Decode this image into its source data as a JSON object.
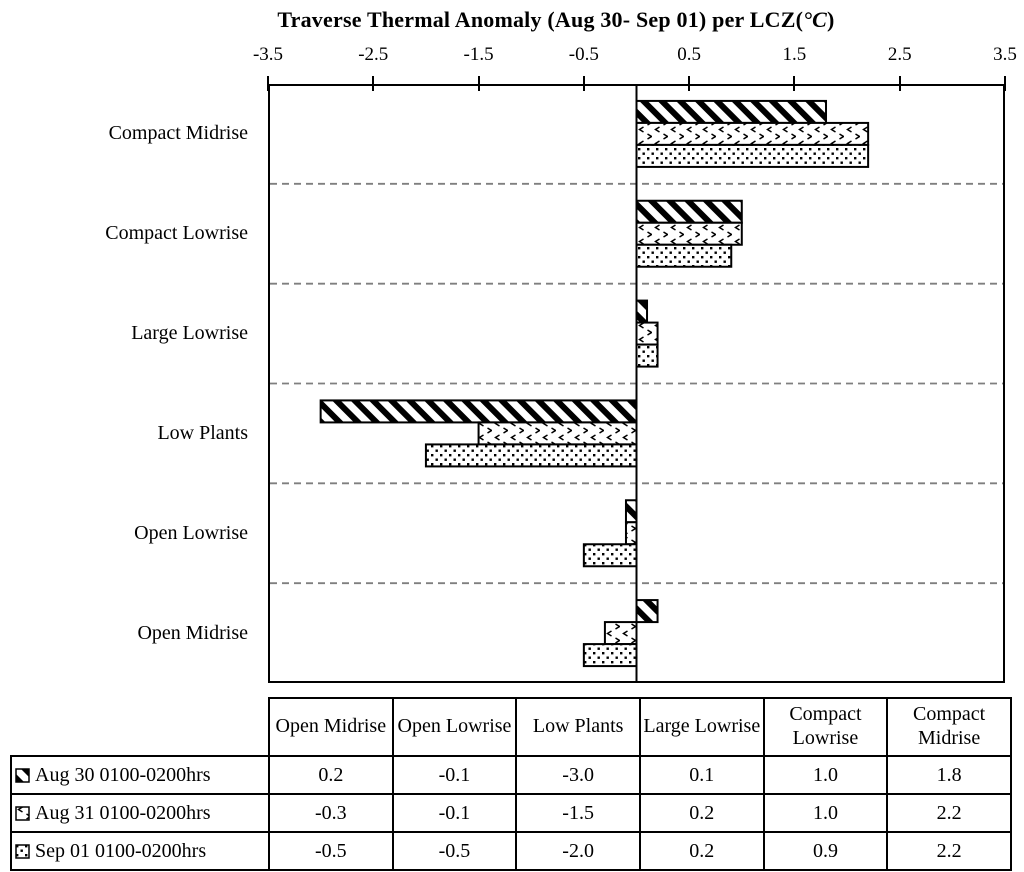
{
  "title": {
    "prefix": "Traverse Thermal Anomaly (Aug 30- Sep 01) per LCZ(",
    "unit": "°C",
    "suffix": ")"
  },
  "chart_data": {
    "type": "bar",
    "orientation": "horizontal",
    "title": "Traverse Thermal Anomaly (Aug 30- Sep 01) per LCZ(°C)",
    "xlabel": "",
    "ylabel": "",
    "axis_position": "top",
    "xlim": [
      -3.5,
      3.5
    ],
    "xticks": [
      "-3.5",
      "-2.5",
      "-1.5",
      "-0.5",
      "0.5",
      "1.5",
      "2.5",
      "3.5"
    ],
    "grid": "dashed horizontal separators between categories",
    "legend_position": "table below chart",
    "categories": [
      "Compact Midrise",
      "Compact Lowrise",
      "Large Lowrise",
      "Low Plants",
      "Open Lowrise",
      "Open Midrise"
    ],
    "series": [
      {
        "name": "Aug 30 0100-0200hrs",
        "pattern": "diagonal-stripes",
        "values": [
          1.8,
          1.0,
          0.1,
          -3.0,
          -0.1,
          0.2
        ]
      },
      {
        "name": "Aug 31 0100-0200hrs",
        "pattern": "chevron-scatter",
        "values": [
          2.2,
          1.0,
          0.2,
          -1.5,
          -0.1,
          -0.3
        ]
      },
      {
        "name": "Sep 01 0100-0200hrs",
        "pattern": "dots",
        "values": [
          2.2,
          0.9,
          0.2,
          -2.0,
          -0.5,
          -0.5
        ]
      }
    ]
  },
  "table": {
    "columns": [
      "Open Midrise",
      "Open Lowrise",
      "Low Plants",
      "Large Lowrise",
      "Compact Lowrise",
      "Compact Midrise"
    ],
    "rows": [
      {
        "label": "Aug 30 0100-0200hrs",
        "swatch": "diagonal-stripes",
        "values": [
          "0.2",
          "-0.1",
          "-3.0",
          "0.1",
          "1.0",
          "1.8"
        ]
      },
      {
        "label": "Aug 31 0100-0200hrs",
        "swatch": "chevron-scatter",
        "values": [
          "-0.3",
          "-0.1",
          "-1.5",
          "0.2",
          "1.0",
          "2.2"
        ]
      },
      {
        "label": "Sep 01 0100-0200hrs",
        "swatch": "dots",
        "values": [
          "-0.5",
          "-0.5",
          "-2.0",
          "0.2",
          "0.9",
          "2.2"
        ]
      }
    ]
  },
  "colors": {
    "ink": "#000000",
    "background": "#ffffff",
    "grid_dash": "#7f7f7f",
    "bar_fill_base": "#ffffff"
  }
}
